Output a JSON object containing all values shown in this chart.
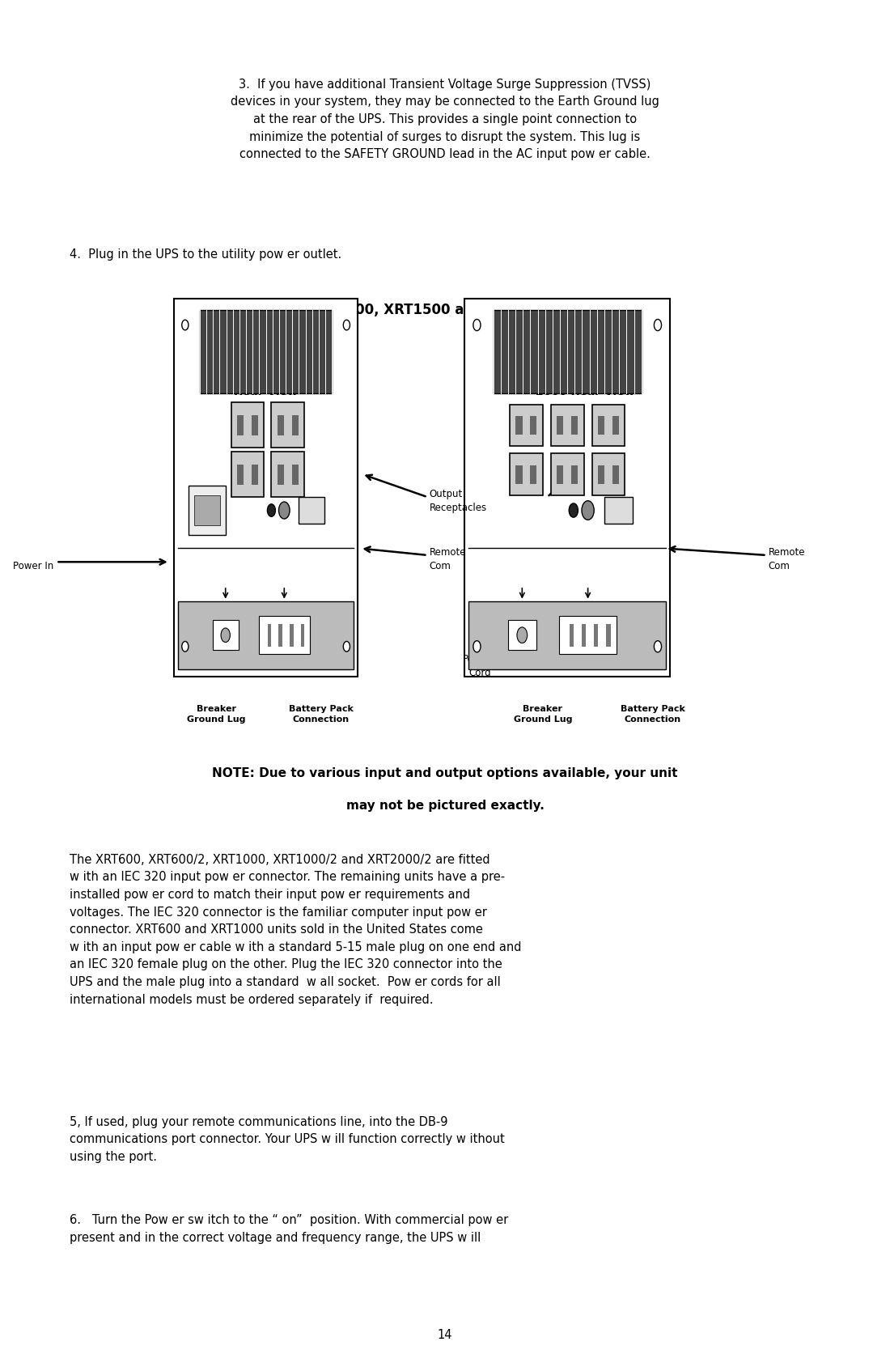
{
  "bg_color": "#ffffff",
  "text_color": "#000000",
  "page_width": 10.8,
  "page_height": 16.69,
  "paragraph3": "3.  If you have additional Transient Voltage Surge Suppression (TVSS)\ndevices in your system, they may be connected to the Earth Ground lug\nat the rear of the UPS. This provides a single point connection to\nminimize the potential of surges to disrupt the system. This lug is\nconnected to the SAFETY GROUND lead in the AC input pow er cable.",
  "paragraph4": "4.  Plug in the UPS to the utility pow er outlet.",
  "diagram_title": "XRT600, XRT1000, XRT1500 and XRT2000 Back panels",
  "xrt600_label": "XRT600\nRear View",
  "xrt1000_label": "XRT1000, 1500,\n2000 Rear View",
  "label_output": "Output\nReceptacles",
  "label_remote_left": "Remote\nCom",
  "label_remote_right": "Remote\nCom",
  "label_power_in": "Power In",
  "label_breaker_left": "Breaker\nGround Lug",
  "label_battery_left": "Battery Pack\nConnection",
  "label_power_cord": "Power\nCord",
  "label_breaker_right": "Breaker\nGround Lug",
  "label_battery_right": "Battery Pack\nConnection",
  "note_line1": "NOTE: Due to various input and output options available, your unit",
  "note_line2": "may not be pictured exactly.",
  "para_body1": "The XRT600, XRT600/2, XRT1000, XRT1000/2 and XRT2000/2 are fitted\nw ith an IEC 320 input pow er connector. The remaining units have a pre-\ninstalled pow er cord to match their input pow er requirements and\nvoltages. The IEC 320 connector is the familiar computer input pow er\nconnector. XRT600 and XRT1000 units sold in the United States come\nw ith an input pow er cable w ith a standard 5-15 male plug on one end and\nan IEC 320 female plug on the other. Plug the IEC 320 connector into the\nUPS and the male plug into a standard  w all socket.  Pow er cords for all\ninternational models must be ordered separately if  required.",
  "para5": "5, If used, plug your remote communications line, into the DB-9\ncommunications port connector. Your UPS w ill function correctly w ithout\nusing the port.",
  "para6": "6.   Turn the Pow er sw itch to the “ on”  position. With commercial pow er\npresent and in the correct voltage and frequency range, the UPS w ill",
  "page_number": "14"
}
